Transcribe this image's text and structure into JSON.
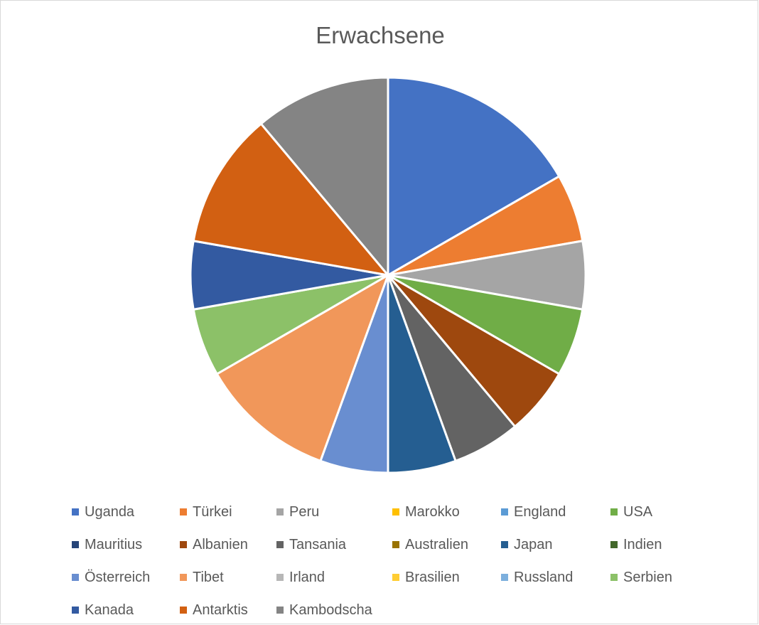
{
  "chart_data": {
    "type": "pie",
    "title": "Erwachsene",
    "categories": [
      "Uganda",
      "Türkei",
      "Peru",
      "Marokko",
      "England",
      "USA",
      "Mauritius",
      "Albanien",
      "Tansania",
      "Australien",
      "Japan",
      "Indien",
      "Österreich",
      "Tibet",
      "Irland",
      "Brasilien",
      "Russland",
      "Serbien",
      "Kanada",
      "Antarktis",
      "Kambodscha"
    ],
    "values": [
      3,
      1,
      1,
      0,
      0,
      1,
      0,
      1,
      1,
      0,
      1,
      0,
      1,
      2,
      0,
      0,
      0,
      1,
      1,
      2,
      2
    ],
    "colors": [
      "#4472C4",
      "#ED7D31",
      "#A5A5A5",
      "#FFC000",
      "#5B9BD5",
      "#70AD47",
      "#264478",
      "#9E480E",
      "#636363",
      "#997300",
      "#255E91",
      "#43682B",
      "#698ED0",
      "#F1975A",
      "#B7B7B7",
      "#FFCD33",
      "#7CAFDD",
      "#8CC168",
      "#335AA1",
      "#D26012",
      "#848484"
    ],
    "legend_position": "bottom",
    "start_angle": "12 o'clock, clockwise"
  }
}
